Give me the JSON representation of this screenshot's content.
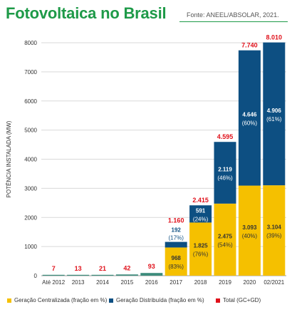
{
  "header": {
    "title": "Fotovoltaica no Brasil",
    "source": "Fonte: ANEEL/ABSOLAR, 2021."
  },
  "colors": {
    "centralizada": "#f5c000",
    "distribuida": "#0d4f82",
    "total": "#e0111b",
    "title": "#1e9a48",
    "grid": "#d9d9d9",
    "small_bar": "#3d8c7c"
  },
  "chart_data": {
    "type": "bar",
    "stacked": true,
    "title": "Fotovoltaica no Brasil",
    "ylabel": "POTÊNCIA INSTALADA (MW)",
    "xlabel": "",
    "ylim": [
      0,
      8000
    ],
    "yticks": [
      0,
      1000,
      2000,
      3000,
      4000,
      5000,
      6000,
      7000,
      8000
    ],
    "ytick_labels": [
      "0",
      "1000",
      "2000",
      "3000",
      "4000",
      "5000",
      "6000",
      "7000",
      "8000"
    ],
    "grid": true,
    "legend_position": "bottom",
    "categories": [
      "Até 2012",
      "2013",
      "2014",
      "2015",
      "2016",
      "2017",
      "2018",
      "2019",
      "2020",
      "02/2021"
    ],
    "series": [
      {
        "name": "Geração Centralizada (fração em %)",
        "values": [
          null,
          null,
          null,
          null,
          null,
          968,
          1825,
          2475,
          3093,
          3104
        ],
        "labels": [
          "",
          "",
          "",
          "",
          "",
          "968",
          "1.825",
          "2.475",
          "3.093",
          "3.104"
        ],
        "pct_labels": [
          "",
          "",
          "",
          "",
          "",
          "(83%)",
          "(76%)",
          "(54%)",
          "(40%)",
          "(39%)"
        ]
      },
      {
        "name": "Geração Distribuída (fração em %)",
        "values": [
          null,
          null,
          null,
          null,
          null,
          192,
          591,
          2119,
          4646,
          4906
        ],
        "labels": [
          "",
          "",
          "",
          "",
          "",
          "192",
          "591",
          "2.119",
          "4.646",
          "4.906"
        ],
        "pct_labels": [
          "",
          "",
          "",
          "",
          "",
          "(17%)",
          "(24%)",
          "(46%)",
          "(60%)",
          "(61%)"
        ]
      }
    ],
    "totals": {
      "name": "Total (GC+GD)",
      "values": [
        7,
        13,
        21,
        42,
        93,
        1160,
        2415,
        4595,
        7740,
        8010
      ],
      "labels": [
        "7",
        "13",
        "21",
        "42",
        "93",
        "1.160",
        "2.415",
        "4.595",
        "7.740",
        "8.010"
      ]
    }
  }
}
